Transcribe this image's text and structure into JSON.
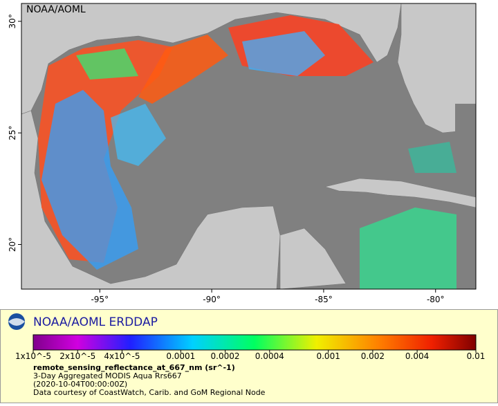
{
  "map": {
    "label": "NOAA/AOML",
    "xlim": [
      -98.5,
      -78.2
    ],
    "ylim": [
      18,
      30.8
    ],
    "xticks": [
      {
        "value": -95,
        "label": "-95°"
      },
      {
        "value": -90,
        "label": "-90°"
      },
      {
        "value": -85,
        "label": "-85°"
      },
      {
        "value": -80,
        "label": "-80°"
      }
    ],
    "yticks": [
      {
        "value": 20,
        "label": "20°"
      },
      {
        "value": 25,
        "label": "25°"
      },
      {
        "value": 30,
        "label": "30°"
      }
    ]
  },
  "legend": {
    "title": "NOAA/AOML ERDDAP",
    "scale": "log",
    "range": [
      1e-05,
      0.01
    ],
    "ticks": [
      {
        "value": 1e-05,
        "label": "1x10^-5"
      },
      {
        "value": 2e-05,
        "label": "2x10^-5"
      },
      {
        "value": 4e-05,
        "label": "4x10^-5"
      },
      0.0001,
      0.0002,
      0.0004,
      0.001,
      0.002,
      0.004,
      0.01
    ],
    "lines": [
      "remote_sensing_reflectance_at_667_nm (sr^-1)",
      "3-Day Aggregated MODIS Aqua Rrs667",
      "(2020-10-04T00:00:00Z)",
      "Data courtesy of CoastWatch, Carib. and GoM Regional Node"
    ]
  }
}
